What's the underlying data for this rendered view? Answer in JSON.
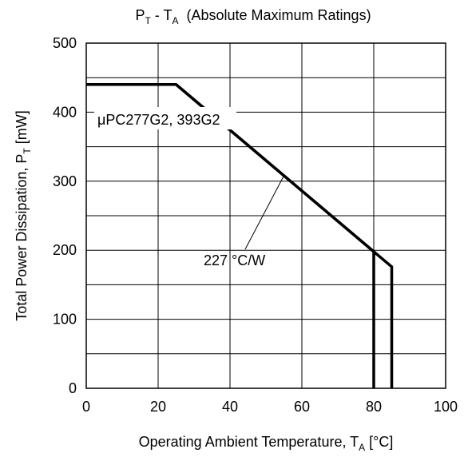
{
  "chart_data": {
    "type": "line",
    "title": {
      "base1": "P",
      "sub1": "T",
      "mid": " - T",
      "sub2": "A",
      "rest": "  (Absolute Maximum Ratings)"
    },
    "xlabel": {
      "base": "Operating Ambient Temperature, T",
      "sub": "A",
      "rest": " [°C]"
    },
    "ylabel": {
      "base": "Total Power Dissipation, P",
      "sub": "T",
      "rest": " [mW]"
    },
    "xlim": [
      0,
      100
    ],
    "ylim": [
      0,
      500
    ],
    "xticks": [
      0,
      20,
      40,
      60,
      80,
      100
    ],
    "yticks": [
      0,
      100,
      200,
      300,
      400,
      500
    ],
    "grid": true,
    "series": [
      {
        "name": "",
        "points": [
          [
            0,
            440
          ],
          [
            25,
            440
          ],
          [
            80,
            198
          ],
          [
            80,
            0
          ]
        ]
      },
      {
        "name": "",
        "points": [
          [
            25,
            440
          ],
          [
            85,
            176
          ],
          [
            85,
            0
          ]
        ]
      }
    ],
    "annotations": [
      {
        "text": "μPC277G2, 393G2"
      },
      {
        "text": "227 °C/W",
        "points_to": [
          55,
          308
        ]
      }
    ]
  }
}
